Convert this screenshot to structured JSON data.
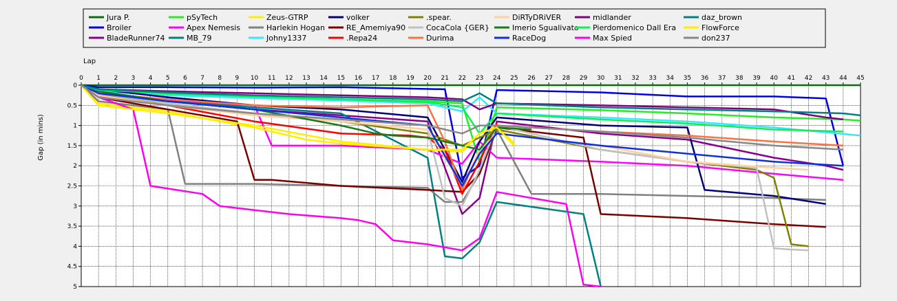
{
  "chart_data": {
    "type": "line",
    "xlabel": "Lap",
    "ylabel": "Gap (in mins)",
    "xlim": [
      0,
      45
    ],
    "ylim": [
      0,
      5
    ],
    "y_inverted": true,
    "x_ticks": [
      0,
      1,
      2,
      3,
      4,
      5,
      6,
      7,
      8,
      9,
      10,
      11,
      12,
      13,
      14,
      15,
      16,
      17,
      18,
      19,
      20,
      21,
      22,
      23,
      24,
      25,
      26,
      27,
      28,
      29,
      30,
      31,
      32,
      33,
      34,
      35,
      36,
      37,
      38,
      39,
      40,
      41,
      42,
      43,
      44,
      45
    ],
    "y_ticks": [
      "0",
      "0.5",
      "1",
      "1.5",
      "2",
      "2.5",
      "3",
      "3.5",
      "4",
      "4.5",
      "5"
    ],
    "grid": true,
    "legend_position": "top",
    "series": [
      {
        "name": "Jura P.",
        "color": "#0a6e0a",
        "x": [
          0,
          1,
          5,
          10,
          15,
          20,
          22,
          23,
          24,
          45
        ],
        "y": [
          0,
          0,
          0,
          0,
          0,
          0,
          0,
          0,
          0,
          0
        ]
      },
      {
        "name": "Broiler",
        "color": "#0000e6",
        "x": [
          0,
          1,
          5,
          10,
          15,
          21,
          22,
          23,
          24,
          30,
          35,
          40,
          43,
          44
        ],
        "y": [
          0,
          0.05,
          0.05,
          0.06,
          0.05,
          0.1,
          2.3,
          2.0,
          0.12,
          0.18,
          0.28,
          0.28,
          0.33,
          2.0
        ]
      },
      {
        "name": "BladeRunner74",
        "color": "#8b008b",
        "x": [
          0,
          1,
          5,
          10,
          15,
          20,
          22,
          23,
          24,
          30,
          35,
          40,
          43,
          44
        ],
        "y": [
          0,
          0.25,
          0.4,
          0.6,
          0.75,
          0.9,
          3.2,
          2.8,
          0.9,
          1.2,
          1.35,
          1.8,
          2.0,
          2.1
        ]
      },
      {
        "name": "pSyTech",
        "color": "#22ee22",
        "x": [
          0,
          1,
          5,
          10,
          15,
          20,
          22,
          23,
          24,
          30,
          35,
          40,
          44,
          45
        ],
        "y": [
          0,
          0.15,
          0.22,
          0.3,
          0.35,
          0.4,
          0.45,
          1.9,
          0.55,
          0.62,
          0.7,
          0.8,
          0.85,
          0.88
        ]
      },
      {
        "name": "Apex Nemesis",
        "color": "#ff00ff",
        "x": [
          0,
          1,
          10,
          11,
          15,
          20,
          22,
          23,
          24,
          30,
          35,
          40,
          44
        ],
        "y": [
          0,
          0.3,
          0.5,
          1.5,
          1.5,
          1.6,
          1.95,
          1.4,
          1.8,
          1.9,
          2.0,
          2.2,
          2.35
        ]
      },
      {
        "name": "MB_79",
        "color": "#008080",
        "x": [
          0,
          1,
          5,
          10,
          15,
          20,
          21,
          22,
          23,
          24,
          29,
          30
        ],
        "y": [
          0,
          0.2,
          0.4,
          0.55,
          0.7,
          1.8,
          4.25,
          4.3,
          3.9,
          2.9,
          3.2,
          5.0
        ]
      },
      {
        "name": "Zeus-GTRP",
        "color": "#ffee00",
        "x": [
          0,
          1,
          3,
          5,
          8,
          10,
          13,
          15,
          20,
          22,
          23,
          24,
          25
        ],
        "y": [
          0,
          0.45,
          0.55,
          0.65,
          0.9,
          1.05,
          1.35,
          1.45,
          1.6,
          1.65,
          1.2,
          1.0,
          1.45
        ]
      },
      {
        "name": "Harlekin Hogan",
        "color": "#808080",
        "x": [
          0,
          1,
          5,
          6,
          10,
          15,
          20,
          21,
          22,
          23,
          24,
          26,
          30,
          35,
          40,
          43
        ],
        "y": [
          0,
          0.4,
          0.6,
          2.45,
          2.45,
          2.5,
          2.55,
          2.9,
          2.9,
          2.2,
          1.1,
          2.7,
          2.7,
          2.75,
          2.8,
          2.85
        ]
      },
      {
        "name": "Johny1337",
        "color": "#33e8ff",
        "x": [
          0,
          1,
          5,
          10,
          15,
          20,
          22,
          23,
          24,
          30,
          35,
          40,
          45
        ],
        "y": [
          0,
          0.15,
          0.25,
          0.32,
          0.38,
          0.45,
          0.65,
          0.3,
          0.7,
          0.8,
          0.9,
          1.05,
          1.25
        ]
      },
      {
        "name": "volker",
        "color": "#00007a",
        "x": [
          0,
          1,
          5,
          10,
          15,
          20,
          22,
          23,
          24,
          30,
          35,
          36,
          40,
          43
        ],
        "y": [
          0,
          0.1,
          0.3,
          0.5,
          0.6,
          0.8,
          2.4,
          1.4,
          0.8,
          1.0,
          1.05,
          2.6,
          2.75,
          2.95
        ]
      },
      {
        "name": "RE_Amemiya90",
        "color": "#7a0000",
        "x": [
          0,
          1,
          5,
          9,
          10,
          11,
          15,
          20,
          22,
          23,
          24,
          29,
          30,
          35,
          40,
          43
        ],
        "y": [
          0,
          0.3,
          0.6,
          0.9,
          2.35,
          2.35,
          2.5,
          2.6,
          2.65,
          2.2,
          1.05,
          1.3,
          3.2,
          3.3,
          3.45,
          3.52
        ]
      },
      {
        "name": ".Repa24",
        "color": "#ff0000",
        "x": [
          0,
          1,
          5,
          10,
          15,
          19,
          20,
          21,
          22,
          23,
          24
        ],
        "y": [
          0,
          0.3,
          0.5,
          0.9,
          1.2,
          1.25,
          1.3,
          1.6,
          2.7,
          1.9,
          0.95
        ]
      },
      {
        "name": ".spear.",
        "color": "#808000",
        "x": [
          0,
          1,
          5,
          10,
          15,
          20,
          22,
          23,
          24,
          30,
          35,
          39,
          40,
          41,
          42
        ],
        "y": [
          0,
          0.2,
          0.5,
          0.7,
          0.9,
          1.2,
          1.5,
          1.3,
          1.1,
          1.6,
          1.9,
          2.1,
          2.3,
          3.95,
          4.0
        ]
      },
      {
        "name": "CocaCola {GER}",
        "color": "#c0c0c0",
        "x": [
          0,
          1,
          5,
          10,
          15,
          20,
          21,
          22,
          23,
          24,
          30,
          35,
          39,
          40,
          41,
          42
        ],
        "y": [
          0,
          0.2,
          0.45,
          0.7,
          0.9,
          1.1,
          2.8,
          3.0,
          2.1,
          1.0,
          1.6,
          1.9,
          2.05,
          4.05,
          4.08,
          4.1
        ]
      },
      {
        "name": "Durima",
        "color": "#ff7040",
        "x": [
          0,
          1,
          5,
          10,
          15,
          20,
          21,
          22,
          23,
          24,
          30,
          35,
          40,
          44
        ],
        "y": [
          0,
          0.2,
          0.35,
          0.5,
          0.55,
          0.5,
          1.4,
          2.6,
          1.6,
          1.0,
          1.15,
          1.25,
          1.4,
          1.5
        ]
      },
      {
        "name": "DiRTyDRiVER",
        "color": "#ffd0a0",
        "x": [
          0,
          1,
          5,
          10,
          15,
          20,
          22,
          23,
          24,
          30,
          35,
          40,
          42
        ],
        "y": [
          0,
          0.25,
          0.5,
          0.75,
          0.9,
          1.1,
          2.5,
          1.6,
          1.2,
          1.5,
          1.9,
          2.05,
          2.1
        ]
      },
      {
        "name": "Imerio Sgualivato",
        "color": "#1a7a1a",
        "x": [
          0,
          1,
          5,
          10,
          15,
          17,
          18,
          20,
          22,
          23,
          24,
          26
        ],
        "y": [
          0,
          0.15,
          0.4,
          0.6,
          1.0,
          1.2,
          1.25,
          1.3,
          1.5,
          1.6,
          1.05,
          1.1
        ]
      },
      {
        "name": "RaceDog",
        "color": "#1030e0",
        "x": [
          0,
          1,
          5,
          10,
          15,
          20,
          22,
          23,
          24,
          30,
          35,
          40,
          44
        ],
        "y": [
          0,
          0.2,
          0.4,
          0.6,
          0.8,
          1.0,
          2.5,
          1.7,
          1.2,
          1.5,
          1.7,
          1.9,
          2.0
        ]
      },
      {
        "name": "midlander",
        "color": "#800080",
        "x": [
          0,
          1,
          5,
          10,
          15,
          20,
          22,
          23,
          24,
          30,
          35,
          40,
          43,
          44
        ],
        "y": [
          0,
          0.1,
          0.15,
          0.2,
          0.25,
          0.3,
          0.35,
          0.6,
          0.45,
          0.5,
          0.55,
          0.6,
          0.8,
          0.85
        ]
      },
      {
        "name": "Pierdomenico Dall Era",
        "color": "#11ee55",
        "x": [
          0,
          1,
          5,
          10,
          15,
          20,
          22,
          23,
          24,
          30,
          35,
          40,
          44
        ],
        "y": [
          0,
          0.12,
          0.2,
          0.28,
          0.35,
          0.42,
          0.55,
          1.2,
          0.7,
          0.85,
          0.95,
          1.1,
          1.15
        ]
      },
      {
        "name": "Max Spied",
        "color": "#ff00ee",
        "x": [
          0,
          1,
          3,
          4,
          7,
          8,
          10,
          12,
          15,
          16,
          17,
          18,
          20,
          22,
          23,
          24,
          28,
          29,
          30
        ],
        "y": [
          0,
          0.3,
          0.6,
          2.5,
          2.7,
          3.0,
          3.1,
          3.2,
          3.3,
          3.35,
          3.45,
          3.85,
          3.95,
          4.1,
          3.8,
          2.65,
          2.95,
          4.95,
          5.0
        ]
      },
      {
        "name": "daz_brown",
        "color": "#008080",
        "x": [
          0,
          1,
          5,
          10,
          15,
          20,
          22,
          23,
          24,
          30,
          35,
          40,
          44,
          45
        ],
        "y": [
          0,
          0.1,
          0.18,
          0.25,
          0.3,
          0.35,
          0.4,
          0.2,
          0.45,
          0.55,
          0.6,
          0.65,
          0.7,
          0.75
        ]
      },
      {
        "name": "FlowForce",
        "color": "#ffee00",
        "x": [
          0,
          1,
          5,
          10,
          15,
          20,
          22,
          23,
          24,
          25
        ],
        "y": [
          0,
          0.5,
          0.7,
          1.0,
          1.4,
          1.6,
          1.6,
          1.2,
          1.05,
          1.5
        ]
      },
      {
        "name": "don237",
        "color": "#888888",
        "x": [
          0,
          1,
          5,
          10,
          15,
          20,
          22,
          23,
          24,
          30,
          35,
          40,
          44
        ],
        "y": [
          0,
          0.3,
          0.5,
          0.7,
          0.85,
          1.0,
          1.2,
          1.0,
          1.0,
          1.15,
          1.3,
          1.5,
          1.6
        ]
      }
    ]
  }
}
